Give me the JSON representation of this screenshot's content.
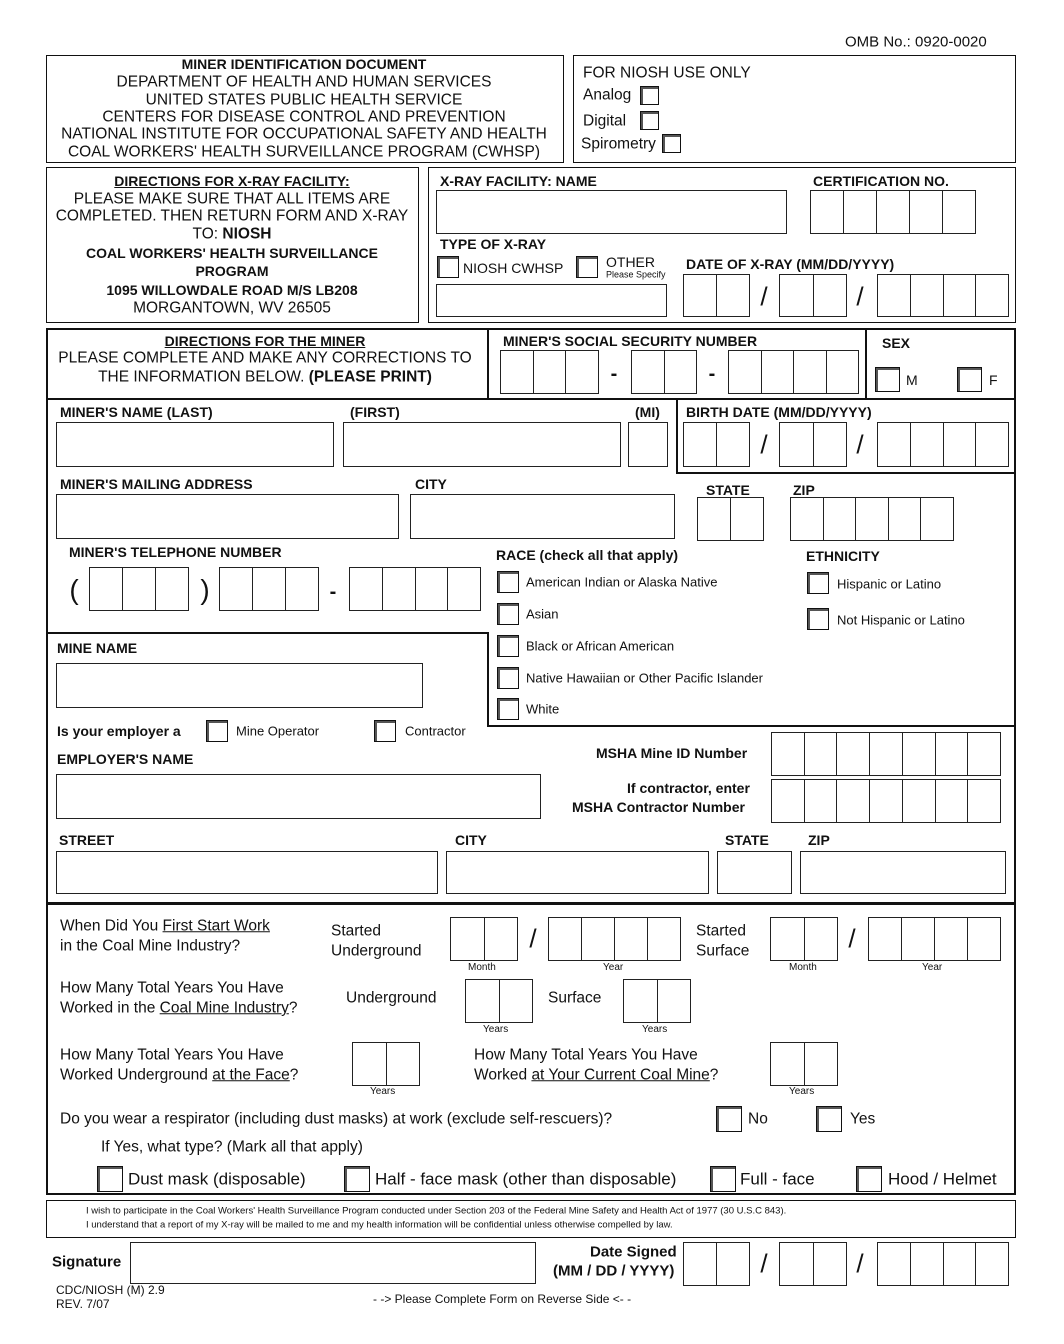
{
  "omb": "OMB No.: 0920-0020",
  "header": {
    "lines": [
      "MINER IDENTIFICATION DOCUMENT",
      "DEPARTMENT OF HEALTH AND HUMAN SERVICES",
      "UNITED STATES PUBLIC HEALTH SERVICE",
      "CENTERS FOR DISEASE CONTROL AND PREVENTION",
      "NATIONAL INSTITUTE FOR OCCUPATIONAL SAFETY AND HEALTH",
      "COAL WORKERS' HEALTH SURVEILLANCE PROGRAM (CWHSP)"
    ]
  },
  "niosh": {
    "title": "FOR NIOSH USE ONLY",
    "analog": "Analog",
    "digital": "Digital",
    "spirometry": "Spirometry"
  },
  "xray_directions": {
    "title": "DIRECTIONS FOR X-RAY FACILITY:",
    "l1": "PLEASE MAKE SURE THAT ALL ITEMS ARE",
    "l2": "COMPLETED. THEN RETURN FORM AND X-RAY",
    "l3a": "TO: ",
    "l3b": "NIOSH",
    "l4": "COAL WORKERS' HEALTH SURVEILLANCE",
    "l5": "PROGRAM",
    "l6": "1095 WILLOWDALE ROAD M/S LB208",
    "l7": "MORGANTOWN, WV 26505"
  },
  "xray": {
    "facility_name": "X-RAY FACILITY: NAME",
    "cert_no": "CERTIFICATION NO.",
    "type": "TYPE OF X-RAY",
    "niosh_cwhsp": "NIOSH CWHSP",
    "other": "OTHER",
    "please_specify": "Please Specify",
    "date": "DATE OF X-RAY (MM/DD/YYYY)"
  },
  "miner_directions": {
    "title": "DIRECTIONS FOR THE MINER",
    "l1": "PLEASE COMPLETE AND MAKE ANY CORRECTIONS TO",
    "l2a": "THE INFORMATION BELOW. ",
    "l2b": "(PLEASE PRINT)"
  },
  "ssn": {
    "label": "MINER'S SOCIAL SECURITY NUMBER",
    "dash": "-"
  },
  "sex": {
    "label": "SEX",
    "m": "M",
    "f": "F"
  },
  "name": {
    "last": "MINER'S NAME (LAST)",
    "first": "(FIRST)",
    "mi": "(MI)",
    "birth": "BIRTH DATE (MM/DD/YYYY)"
  },
  "address": {
    "mailing": "MINER'S MAILING ADDRESS",
    "city": "CITY",
    "state": "STATE",
    "zip": "ZIP"
  },
  "phone": {
    "label": "MINER'S TELEPHONE NUMBER",
    "open": "(",
    "close": ")",
    "dash": "-"
  },
  "race": {
    "label": "RACE (check all that apply)",
    "options": [
      "American Indian or Alaska Native",
      "Asian",
      "Black or African American",
      "Native Hawaiian or Other Pacific Islander",
      "White"
    ]
  },
  "ethnicity": {
    "label": "ETHNICITY",
    "options": [
      "Hispanic or Latino",
      "Not Hispanic or Latino"
    ]
  },
  "mine": {
    "name": "MINE NAME",
    "employer_q": "Is your employer a",
    "operator": "Mine Operator",
    "contractor": "Contractor",
    "employer_name": "EMPLOYER'S NAME",
    "msha_id": "MSHA Mine ID Number",
    "if_contractor": "If contractor, enter",
    "msha_contractor": "MSHA Contractor Number",
    "street": "STREET",
    "city": "CITY",
    "state": "STATE",
    "zip": "ZIP"
  },
  "work": {
    "q1a": "When Did You ",
    "q1u": "First Start Work",
    "q1b": "in the Coal Mine Industry?",
    "started": "Started",
    "underground": "Underground",
    "surface": "Surface",
    "month": "Month",
    "year": "Year",
    "years": "Years",
    "q2a": "How Many Total Years You Have",
    "q2b": "Worked in the ",
    "q2u": "Coal Mine Industry",
    "q2c": "?",
    "q3a": "How Many Total Years You Have",
    "q3b": "Worked Underground ",
    "q3u": "at the Face",
    "q3c": "?",
    "q4a": "How Many Total Years You Have",
    "q4b": "Worked ",
    "q4u": "at Your Current Coal Mine",
    "q4c": "?",
    "respirator_q": "Do you wear a respirator (including dust masks) at work (exclude self-rescuers)?",
    "no": "No",
    "yes": "Yes",
    "type_q": "If Yes, what type? (Mark all that apply)",
    "types": [
      "Dust mask (disposable)",
      "Half - face mask (other than disposable)",
      "Full - face",
      "Hood / Helmet"
    ]
  },
  "consent": {
    "l1": "I wish to participate in the Coal Workers' Health Surveillance Program conducted under Section 203 of the Federal Mine Safety and Health Act of 1977 (30 U.S.C 843).",
    "l2": "I understand that a report of my X-ray will be mailed to me and my health information will be confidential unless otherwise compelled by law."
  },
  "signature": {
    "label": "Signature",
    "date_signed": "Date Signed",
    "date_format": "(MM / DD / YYYY)"
  },
  "footer": {
    "form_id": "CDC/NIOSH (M) 2.9",
    "rev": "REV. 7/07",
    "reverse": "- -> Please Complete Form on Reverse Side <- -"
  },
  "slash": "/"
}
